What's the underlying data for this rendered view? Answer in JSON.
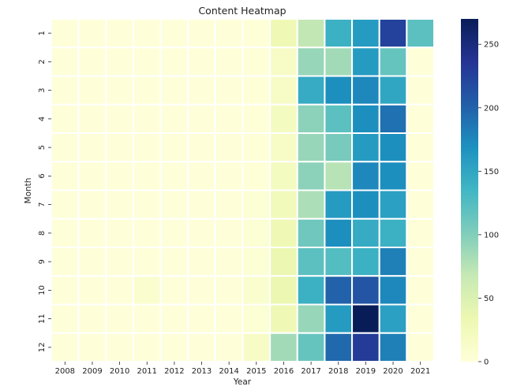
{
  "chart_data": {
    "type": "heatmap",
    "title": "Content Heatmap",
    "xlabel": "Year",
    "ylabel": "Month",
    "x": [
      "2008",
      "2009",
      "2010",
      "2011",
      "2012",
      "2013",
      "2014",
      "2015",
      "2016",
      "2017",
      "2018",
      "2019",
      "2020",
      "2021"
    ],
    "y": [
      "1",
      "2",
      "3",
      "4",
      "5",
      "6",
      "7",
      "8",
      "9",
      "10",
      "11",
      "12"
    ],
    "values": [
      [
        1,
        1,
        1,
        1,
        1,
        1,
        1,
        2,
        30,
        70,
        140,
        160,
        225,
        120
      ],
      [
        1,
        1,
        1,
        1,
        1,
        1,
        1,
        2,
        15,
        90,
        85,
        160,
        115,
        1
      ],
      [
        1,
        1,
        1,
        1,
        1,
        1,
        1,
        2,
        15,
        145,
        170,
        175,
        150,
        1
      ],
      [
        1,
        1,
        1,
        1,
        1,
        1,
        1,
        2,
        20,
        95,
        120,
        170,
        190,
        1
      ],
      [
        1,
        1,
        1,
        1,
        1,
        1,
        1,
        2,
        15,
        90,
        105,
        160,
        170,
        1
      ],
      [
        1,
        1,
        1,
        1,
        1,
        1,
        1,
        2,
        20,
        95,
        75,
        175,
        170,
        1
      ],
      [
        1,
        1,
        1,
        1,
        1,
        1,
        1,
        5,
        25,
        80,
        160,
        170,
        155,
        1
      ],
      [
        1,
        1,
        1,
        1,
        1,
        1,
        1,
        5,
        30,
        110,
        170,
        145,
        140,
        1
      ],
      [
        1,
        1,
        1,
        1,
        1,
        1,
        1,
        5,
        35,
        120,
        125,
        140,
        180,
        1
      ],
      [
        1,
        1,
        1,
        10,
        1,
        1,
        1,
        10,
        35,
        140,
        200,
        210,
        175,
        1
      ],
      [
        1,
        1,
        1,
        1,
        1,
        1,
        1,
        5,
        30,
        90,
        160,
        270,
        155,
        1
      ],
      [
        1,
        1,
        1,
        1,
        1,
        1,
        1,
        15,
        85,
        115,
        195,
        230,
        180,
        1
      ]
    ],
    "colorbar": {
      "min": 0,
      "max": 270,
      "ticks": [
        "0",
        "50",
        "100",
        "150",
        "200",
        "250"
      ]
    },
    "colormap": [
      "#ffffd9",
      "#edf8b1",
      "#c7e9b4",
      "#7fcdbb",
      "#41b6c4",
      "#1d91c0",
      "#225ea8",
      "#253494",
      "#081d58"
    ]
  }
}
